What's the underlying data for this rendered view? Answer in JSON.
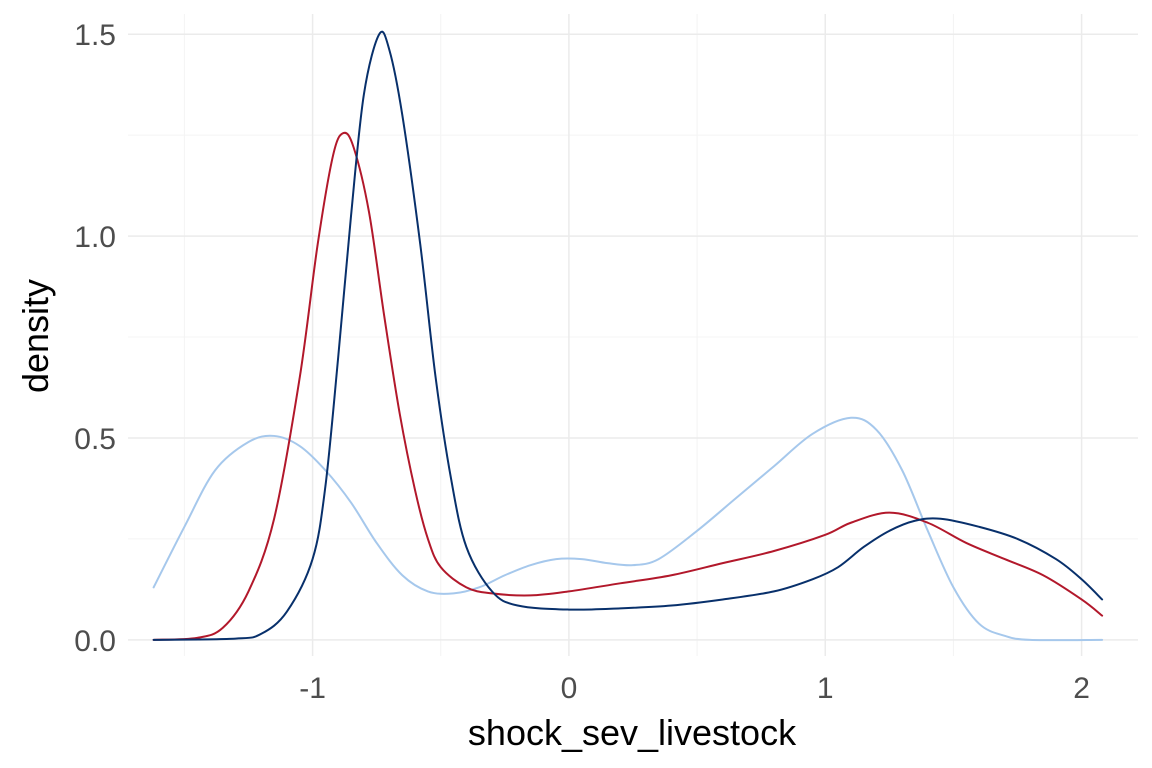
{
  "chart_data": {
    "type": "line",
    "xlabel": "shock_sev_livestock",
    "ylabel": "density",
    "xlim": [
      -1.72,
      2.22
    ],
    "ylim": [
      -0.04,
      1.55
    ],
    "x_ticks": [
      -1,
      0,
      1,
      2
    ],
    "x_tick_labels": [
      "-1",
      "0",
      "1",
      "2"
    ],
    "y_ticks": [
      0.0,
      0.5,
      1.0,
      1.5
    ],
    "y_tick_labels": [
      "0.0",
      "0.5",
      "1.0",
      "1.5"
    ],
    "grid": true,
    "legend": "none",
    "series": [
      {
        "color": "#a6c8ec",
        "points": [
          [
            -1.62,
            0.13
          ],
          [
            -1.5,
            0.28
          ],
          [
            -1.38,
            0.42
          ],
          [
            -1.25,
            0.49
          ],
          [
            -1.15,
            0.505
          ],
          [
            -1.05,
            0.48
          ],
          [
            -0.95,
            0.42
          ],
          [
            -0.85,
            0.34
          ],
          [
            -0.75,
            0.24
          ],
          [
            -0.65,
            0.16
          ],
          [
            -0.55,
            0.12
          ],
          [
            -0.45,
            0.115
          ],
          [
            -0.35,
            0.13
          ],
          [
            -0.25,
            0.16
          ],
          [
            -0.15,
            0.185
          ],
          [
            -0.05,
            0.2
          ],
          [
            0.05,
            0.2
          ],
          [
            0.15,
            0.19
          ],
          [
            0.25,
            0.185
          ],
          [
            0.35,
            0.2
          ],
          [
            0.5,
            0.27
          ],
          [
            0.65,
            0.35
          ],
          [
            0.8,
            0.43
          ],
          [
            0.95,
            0.51
          ],
          [
            1.1,
            0.55
          ],
          [
            1.2,
            0.52
          ],
          [
            1.3,
            0.42
          ],
          [
            1.4,
            0.27
          ],
          [
            1.5,
            0.13
          ],
          [
            1.6,
            0.04
          ],
          [
            1.7,
            0.01
          ],
          [
            1.8,
            0.0
          ],
          [
            2.08,
            0.0
          ]
        ]
      },
      {
        "color": "#b2182b",
        "points": [
          [
            -1.62,
            0.0
          ],
          [
            -1.45,
            0.005
          ],
          [
            -1.35,
            0.03
          ],
          [
            -1.25,
            0.12
          ],
          [
            -1.15,
            0.3
          ],
          [
            -1.05,
            0.65
          ],
          [
            -0.98,
            0.98
          ],
          [
            -0.92,
            1.2
          ],
          [
            -0.88,
            1.255
          ],
          [
            -0.84,
            1.22
          ],
          [
            -0.78,
            1.06
          ],
          [
            -0.72,
            0.8
          ],
          [
            -0.66,
            0.56
          ],
          [
            -0.6,
            0.37
          ],
          [
            -0.55,
            0.25
          ],
          [
            -0.5,
            0.18
          ],
          [
            -0.4,
            0.13
          ],
          [
            -0.3,
            0.115
          ],
          [
            -0.15,
            0.11
          ],
          [
            0.0,
            0.12
          ],
          [
            0.2,
            0.14
          ],
          [
            0.4,
            0.16
          ],
          [
            0.6,
            0.19
          ],
          [
            0.8,
            0.22
          ],
          [
            1.0,
            0.26
          ],
          [
            1.1,
            0.29
          ],
          [
            1.25,
            0.315
          ],
          [
            1.4,
            0.29
          ],
          [
            1.55,
            0.24
          ],
          [
            1.7,
            0.2
          ],
          [
            1.85,
            0.16
          ],
          [
            2.0,
            0.1
          ],
          [
            2.08,
            0.06
          ]
        ]
      },
      {
        "color": "#08306b",
        "points": [
          [
            -1.62,
            0.0
          ],
          [
            -1.3,
            0.003
          ],
          [
            -1.2,
            0.015
          ],
          [
            -1.1,
            0.07
          ],
          [
            -1.0,
            0.2
          ],
          [
            -0.95,
            0.38
          ],
          [
            -0.9,
            0.7
          ],
          [
            -0.85,
            1.05
          ],
          [
            -0.8,
            1.35
          ],
          [
            -0.74,
            1.5
          ],
          [
            -0.7,
            1.46
          ],
          [
            -0.65,
            1.3
          ],
          [
            -0.58,
            0.98
          ],
          [
            -0.52,
            0.65
          ],
          [
            -0.46,
            0.4
          ],
          [
            -0.4,
            0.23
          ],
          [
            -0.3,
            0.12
          ],
          [
            -0.2,
            0.085
          ],
          [
            0.0,
            0.075
          ],
          [
            0.2,
            0.078
          ],
          [
            0.4,
            0.085
          ],
          [
            0.6,
            0.1
          ],
          [
            0.8,
            0.12
          ],
          [
            0.95,
            0.15
          ],
          [
            1.05,
            0.18
          ],
          [
            1.15,
            0.23
          ],
          [
            1.25,
            0.27
          ],
          [
            1.35,
            0.295
          ],
          [
            1.45,
            0.3
          ],
          [
            1.6,
            0.28
          ],
          [
            1.75,
            0.25
          ],
          [
            1.9,
            0.2
          ],
          [
            2.0,
            0.15
          ],
          [
            2.08,
            0.1
          ]
        ]
      }
    ]
  }
}
